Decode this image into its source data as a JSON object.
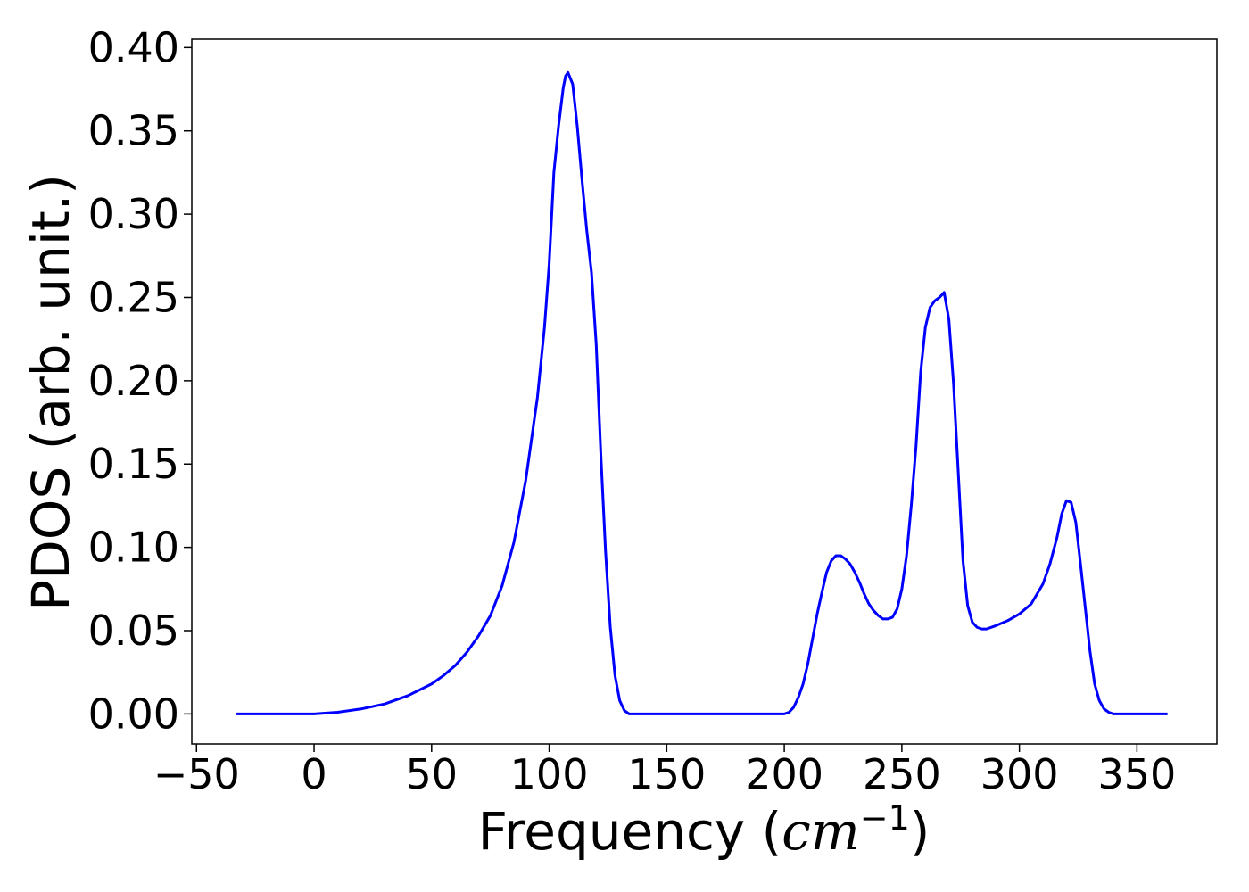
{
  "chart_data": {
    "type": "line",
    "title": "",
    "xlabel": "Frequency (cm⁻¹)",
    "ylabel": "PDOS (arb. unit.)",
    "xlim": [
      -52,
      384
    ],
    "ylim": [
      -0.018,
      0.405
    ],
    "x_ticks": [
      -50,
      0,
      50,
      100,
      150,
      200,
      250,
      300,
      350
    ],
    "x_tick_labels": [
      "−50",
      "0",
      "50",
      "100",
      "150",
      "200",
      "250",
      "300",
      "350"
    ],
    "y_ticks": [
      0.0,
      0.05,
      0.1,
      0.15,
      0.2,
      0.25,
      0.3,
      0.35,
      0.4
    ],
    "y_tick_labels": [
      "0.00",
      "0.05",
      "0.10",
      "0.15",
      "0.20",
      "0.25",
      "0.30",
      "0.35",
      "0.40"
    ],
    "grid": false,
    "series": [
      {
        "color": "#0000ff",
        "x": [
          -33,
          -10,
          0,
          10,
          20,
          30,
          40,
          50,
          55,
          60,
          65,
          70,
          75,
          80,
          85,
          90,
          93,
          95,
          98,
          100,
          102,
          104,
          106,
          107,
          108,
          110,
          112,
          114,
          116,
          118,
          120,
          122,
          124,
          126,
          128,
          130,
          132,
          134,
          136,
          140,
          150,
          200,
          202,
          204,
          206,
          208,
          210,
          212,
          214,
          216,
          218,
          220,
          222,
          224,
          226,
          228,
          230,
          232,
          234,
          236,
          238,
          240,
          242,
          244,
          246,
          248,
          250,
          252,
          254,
          256,
          258,
          260,
          262,
          264,
          266,
          268,
          270,
          272,
          274,
          276,
          278,
          280,
          282,
          284,
          286,
          290,
          295,
          300,
          305,
          310,
          313,
          316,
          318,
          320,
          322,
          324,
          326,
          328,
          330,
          332,
          334,
          336,
          338,
          340,
          345,
          350,
          363
        ],
        "y": [
          0.0,
          0.0,
          0.0,
          0.001,
          0.003,
          0.006,
          0.011,
          0.018,
          0.023,
          0.029,
          0.037,
          0.047,
          0.059,
          0.077,
          0.103,
          0.14,
          0.17,
          0.19,
          0.232,
          0.27,
          0.325,
          0.353,
          0.376,
          0.383,
          0.385,
          0.378,
          0.352,
          0.32,
          0.29,
          0.265,
          0.222,
          0.155,
          0.097,
          0.052,
          0.023,
          0.008,
          0.002,
          0.0,
          0.0,
          0.0,
          0.0,
          0.0,
          0.001,
          0.004,
          0.01,
          0.018,
          0.03,
          0.045,
          0.06,
          0.073,
          0.085,
          0.092,
          0.095,
          0.095,
          0.093,
          0.09,
          0.085,
          0.079,
          0.072,
          0.066,
          0.062,
          0.059,
          0.057,
          0.057,
          0.058,
          0.063,
          0.075,
          0.095,
          0.125,
          0.16,
          0.205,
          0.232,
          0.244,
          0.248,
          0.25,
          0.253,
          0.237,
          0.198,
          0.145,
          0.092,
          0.065,
          0.055,
          0.052,
          0.051,
          0.051,
          0.053,
          0.056,
          0.06,
          0.066,
          0.078,
          0.09,
          0.106,
          0.12,
          0.128,
          0.127,
          0.115,
          0.09,
          0.064,
          0.038,
          0.018,
          0.008,
          0.003,
          0.001,
          0.0,
          0.0,
          0.0,
          0.0
        ]
      }
    ]
  }
}
